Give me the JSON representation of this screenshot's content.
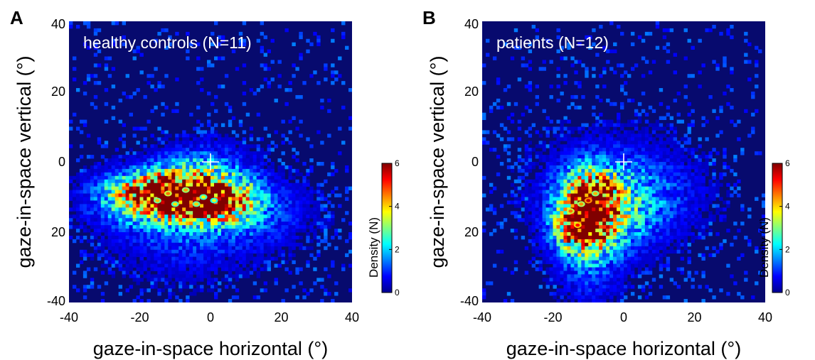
{
  "figure": {
    "panels": [
      {
        "letter": "A",
        "title": "healthy controls (N=11)"
      },
      {
        "letter": "B",
        "title": "patients (N=12)"
      }
    ],
    "colors": {
      "background": "#070a6e",
      "colormap": [
        "#00008f",
        "#0000ff",
        "#0080ff",
        "#00ffff",
        "#80ff80",
        "#ffff00",
        "#ff8000",
        "#ff0000",
        "#800000"
      ],
      "fixation_cross": "#ffffff"
    }
  },
  "chart_data": [
    {
      "type": "heatmap",
      "title": "healthy controls (N=11)",
      "xlabel": "gaze-in-space horizontal (°)",
      "ylabel": "gaze-in-space vertical (°)",
      "xlim": [
        -40,
        40
      ],
      "ylim": [
        -40,
        40
      ],
      "x_ticks": [
        "-40",
        "-20",
        "0",
        "20",
        "40"
      ],
      "y_ticks": [
        "40",
        "20",
        "0",
        "20",
        "-40"
      ],
      "grid": false,
      "colorbar": {
        "label": "Density (N)",
        "range": [
          0,
          6
        ],
        "ticks": [
          "0",
          "2",
          "4",
          "6"
        ]
      },
      "fixation_cross": [
        0,
        0
      ],
      "density_blobs": [
        {
          "x": -12,
          "y": -10,
          "sx": 13,
          "sy": 5,
          "peak": 3.8,
          "angle": 0
        },
        {
          "x": -5,
          "y": -10,
          "sx": 7,
          "sy": 4,
          "peak": 3.6,
          "angle": 0
        },
        {
          "x": -18,
          "y": -8,
          "sx": 6,
          "sy": 3,
          "peak": 2.2,
          "angle": 0
        },
        {
          "x": 4,
          "y": -12,
          "sx": 7,
          "sy": 4,
          "peak": 2.0,
          "angle": 0
        },
        {
          "x": -2,
          "y": -3,
          "sx": 10,
          "sy": 6,
          "peak": 1.4,
          "angle": 0
        },
        {
          "x": -8,
          "y": -20,
          "sx": 16,
          "sy": 10,
          "peak": 0.9,
          "angle": 0
        },
        {
          "x": 15,
          "y": -15,
          "sx": 12,
          "sy": 7,
          "peak": 0.7,
          "angle": 0
        }
      ],
      "hotspots": [
        {
          "x": -12,
          "y": -9,
          "value": 4.6
        },
        {
          "x": -7,
          "y": -8,
          "value": 4.3
        },
        {
          "x": -15,
          "y": -11,
          "value": 4.1
        },
        {
          "x": -4,
          "y": -12,
          "value": 4.0
        },
        {
          "x": -2,
          "y": -10,
          "value": 3.8
        },
        {
          "x": 1,
          "y": -11,
          "value": 3.6
        },
        {
          "x": -10,
          "y": -12,
          "value": 3.9
        }
      ]
    },
    {
      "type": "heatmap",
      "title": "patients (N=12)",
      "xlabel": "gaze-in-space horizontal (°)",
      "ylabel": "gaze-in-space vertical (°)",
      "xlim": [
        -40,
        40
      ],
      "ylim": [
        -40,
        40
      ],
      "x_ticks": [
        "-40",
        "-20",
        "0",
        "20",
        "40"
      ],
      "y_ticks": [
        "40",
        "20",
        "0",
        "20",
        "-40"
      ],
      "grid": false,
      "colorbar": {
        "label": "Density (N)",
        "range": [
          0,
          6
        ],
        "ticks": [
          "0",
          "2",
          "4",
          "6"
        ]
      },
      "fixation_cross": [
        0,
        0
      ],
      "density_blobs": [
        {
          "x": -11,
          "y": -14,
          "sx": 5,
          "sy": 7,
          "peak": 3.9,
          "angle": 0
        },
        {
          "x": -8,
          "y": -10,
          "sx": 4,
          "sy": 4,
          "peak": 3.2,
          "angle": 0
        },
        {
          "x": -12,
          "y": -19,
          "sx": 5,
          "sy": 4,
          "peak": 2.6,
          "angle": 0
        },
        {
          "x": -4,
          "y": -14,
          "sx": 9,
          "sy": 8,
          "peak": 1.6,
          "angle": 0
        },
        {
          "x": -10,
          "y": -28,
          "sx": 7,
          "sy": 10,
          "peak": 1.0,
          "angle": 0
        },
        {
          "x": 5,
          "y": -10,
          "sx": 14,
          "sy": 9,
          "peak": 0.8,
          "angle": 0
        },
        {
          "x": -6,
          "y": -5,
          "sx": 16,
          "sy": 12,
          "peak": 0.6,
          "angle": 0
        }
      ],
      "hotspots": [
        {
          "x": -10,
          "y": -11,
          "value": 5.6
        },
        {
          "x": -13,
          "y": -18,
          "value": 5.2
        },
        {
          "x": -15,
          "y": -14,
          "value": 4.6
        },
        {
          "x": -8,
          "y": -9,
          "value": 4.2
        },
        {
          "x": -12,
          "y": -12,
          "value": 4.4
        }
      ]
    }
  ]
}
